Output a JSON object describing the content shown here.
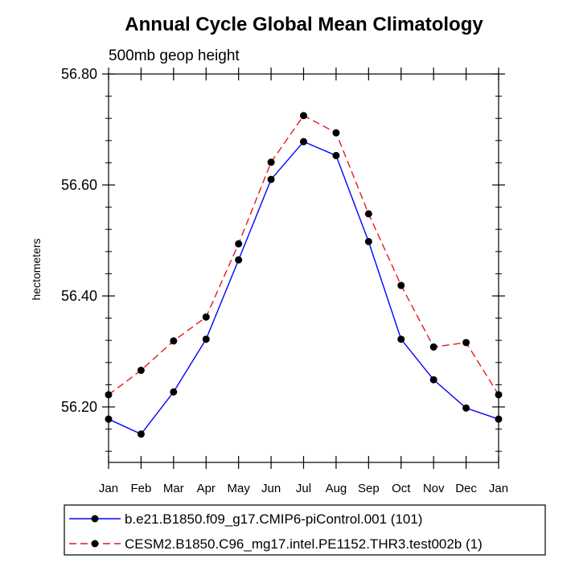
{
  "chart_data": {
    "type": "line",
    "title": "Annual Cycle Global Mean Climatology",
    "subtitle": "500mb geop height",
    "xlabel": "",
    "ylabel": "hectometers",
    "categories": [
      "Jan",
      "Feb",
      "Mar",
      "Apr",
      "May",
      "Jun",
      "Jul",
      "Aug",
      "Sep",
      "Oct",
      "Nov",
      "Dec",
      "Jan"
    ],
    "ylim": [
      56.1,
      56.8
    ],
    "yticks": [
      56.2,
      56.4,
      56.6,
      56.8
    ],
    "ytick_labels": [
      "56.20",
      "56.40",
      "56.60",
      "56.80"
    ],
    "series": [
      {
        "name": "b.e21.B1850.f09_g17.CMIP6-piControl.001 (101)",
        "color": "#0000ff",
        "dash": "solid",
        "values": [
          56.178,
          56.151,
          56.227,
          56.322,
          56.465,
          56.61,
          56.678,
          56.653,
          56.498,
          56.322,
          56.249,
          56.198,
          56.178
        ]
      },
      {
        "name": "CESM2.B1850.C96_mg17.intel.PE1152.THR3.test002b (1)",
        "color": "#e31a1c",
        "dash": "dashed",
        "values": [
          56.222,
          56.266,
          56.319,
          56.362,
          56.494,
          56.641,
          56.725,
          56.694,
          56.548,
          56.419,
          56.308,
          56.316,
          56.222
        ]
      }
    ],
    "legend_position": "bottom"
  }
}
